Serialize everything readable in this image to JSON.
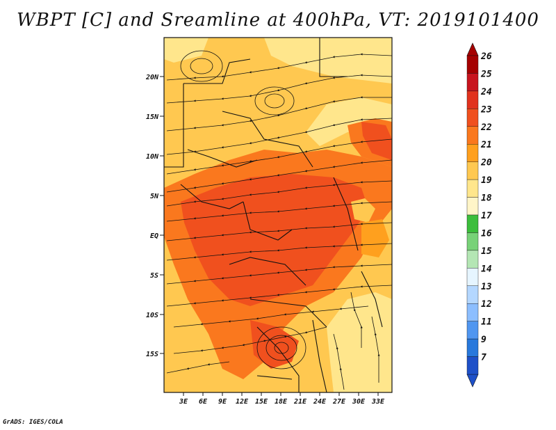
{
  "title": "WBPT [C] and Sreamline at 400hPa, VT: 2019101400",
  "credit": "GrADS: IGES/COLA",
  "map": {
    "lat_labels": [
      "20N",
      "15N",
      "10N",
      "5N",
      "EQ",
      "5S",
      "10S",
      "15S"
    ],
    "lon_labels": [
      "3E",
      "6E",
      "9E",
      "12E",
      "15E",
      "18E",
      "21E",
      "24E",
      "27E",
      "30E",
      "33E"
    ]
  },
  "colorbar": {
    "levels": [
      "26",
      "25",
      "24",
      "23",
      "22",
      "21",
      "20",
      "19",
      "18",
      "17",
      "16",
      "15",
      "14",
      "13",
      "12",
      "11",
      "9",
      "7"
    ],
    "colors": [
      "#a50000",
      "#c8141e",
      "#e1321e",
      "#f0501e",
      "#fa781e",
      "#ffa01e",
      "#ffc850",
      "#ffe68c",
      "#fff5c8",
      "#3cbe3c",
      "#78d278",
      "#b4e6b4",
      "#e6f5ff",
      "#b4d7ff",
      "#8cbeff",
      "#5096f0",
      "#2878dc",
      "#1e50c8"
    ]
  }
}
